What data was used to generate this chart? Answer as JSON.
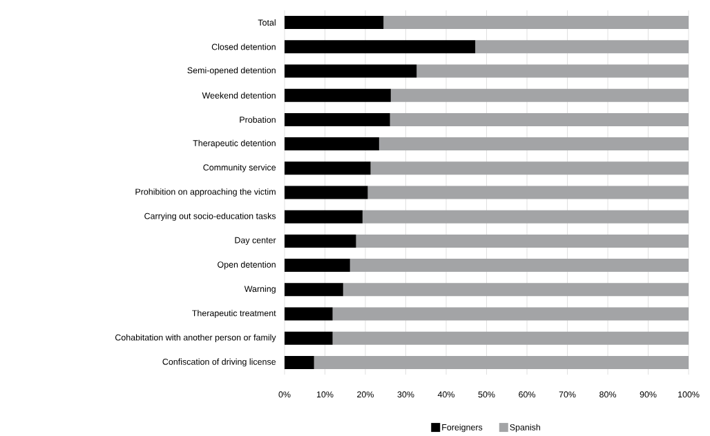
{
  "chart_data": {
    "type": "bar",
    "orientation": "horizontal",
    "stacked": true,
    "categories": [
      "Total",
      "Closed detention",
      "Semi-opened detention",
      "Weekend detention",
      "Probation",
      "Therapeutic detention",
      "Community service",
      "Prohibition on approaching the victim",
      "Carrying out socio-education tasks",
      "Day center",
      "Open detention",
      "Warning",
      "Therapeutic treatment",
      "Cohabitation with another person or family",
      "Confiscation of driving license"
    ],
    "series": [
      {
        "name": "Foreigners",
        "color": "#000000",
        "values": [
          24.5,
          47.2,
          32.7,
          26.3,
          26.1,
          23.4,
          21.3,
          20.6,
          19.3,
          17.7,
          16.2,
          14.5,
          11.9,
          11.9,
          7.3
        ]
      },
      {
        "name": "Spanish",
        "color": "#a3a4a6",
        "values": [
          75.5,
          52.8,
          67.3,
          73.7,
          73.9,
          76.6,
          78.7,
          79.4,
          80.7,
          82.3,
          83.8,
          85.5,
          88.1,
          88.1,
          92.7
        ]
      }
    ],
    "xlim": [
      0,
      100
    ],
    "xticks": [
      {
        "value": 0,
        "label": "0%"
      },
      {
        "value": 10,
        "label": "10%"
      },
      {
        "value": 20,
        "label": "20%"
      },
      {
        "value": 30,
        "label": "30%"
      },
      {
        "value": 40,
        "label": "40%"
      },
      {
        "value": 50,
        "label": "50%"
      },
      {
        "value": 60,
        "label": "60%"
      },
      {
        "value": 70,
        "label": "70%"
      },
      {
        "value": 80,
        "label": "80%"
      },
      {
        "value": 90,
        "label": "90%"
      },
      {
        "value": 100,
        "label": "100%"
      }
    ],
    "grid": "x",
    "legend": "bottom"
  }
}
